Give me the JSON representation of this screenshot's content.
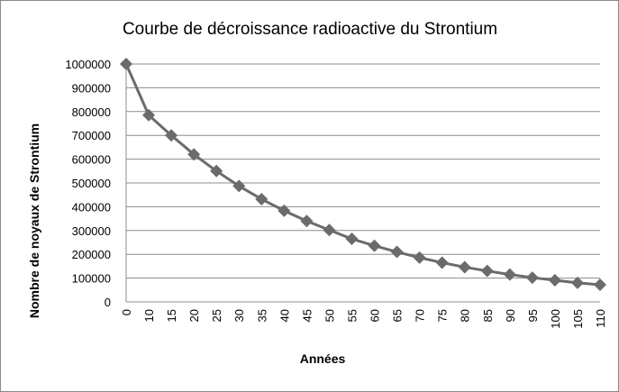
{
  "chart_data": {
    "type": "line",
    "title": "Courbe de décroissance radioactive du Strontium",
    "xlabel": "Années",
    "ylabel": "Nombre de noyaux de Strontium",
    "x": [
      "0",
      "10",
      "15",
      "20",
      "25",
      "30",
      "35",
      "40",
      "45",
      "50",
      "55",
      "60",
      "65",
      "70",
      "75",
      "80",
      "85",
      "90",
      "95",
      "100",
      "105",
      "110"
    ],
    "y_ticks": [
      "0",
      "100000",
      "200000",
      "300000",
      "400000",
      "500000",
      "600000",
      "700000",
      "800000",
      "900000",
      "1000000"
    ],
    "ylim": [
      0,
      1000000
    ],
    "grid": true,
    "legend": "none",
    "series": [
      {
        "color": "#6b6b6b",
        "marker": "diamond",
        "values": [
          1000000,
          785000,
          700000,
          620000,
          550000,
          487000,
          432000,
          383000,
          340000,
          302000,
          265000,
          236000,
          210000,
          186000,
          165000,
          146000,
          130000,
          115000,
          102000,
          91000,
          80000,
          72000
        ]
      }
    ]
  }
}
